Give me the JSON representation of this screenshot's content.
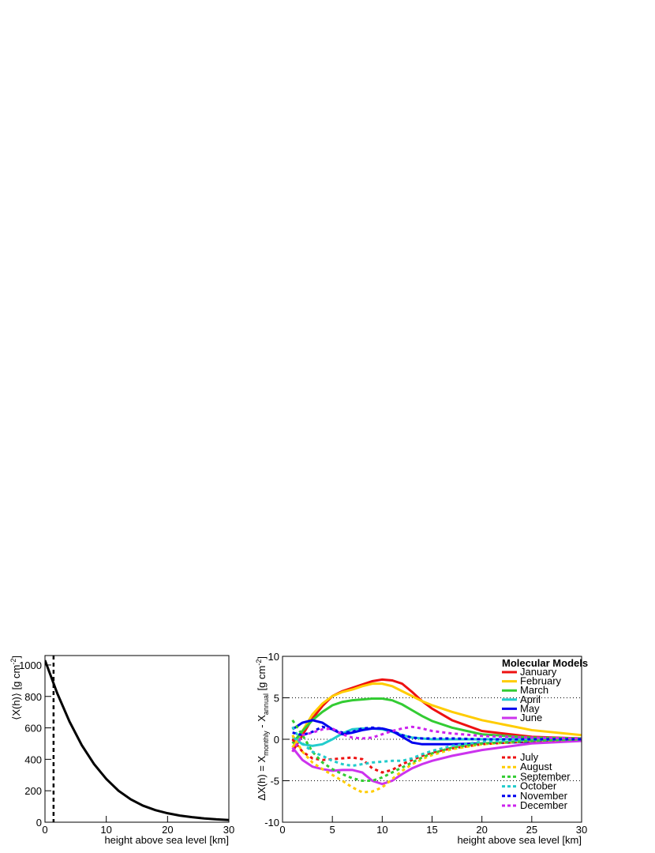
{
  "chart_data": [
    {
      "type": "line",
      "xlabel": "height above sea level [km]",
      "ylabel": [
        "⟨X(h)⟩  [g cm",
        "-2",
        "]"
      ],
      "xlim": [
        0,
        30
      ],
      "ylim": [
        0,
        1060
      ],
      "xticks": [
        0,
        10,
        20,
        30
      ],
      "yticks": [
        0,
        200,
        400,
        600,
        800,
        1000
      ],
      "vline": 1.4,
      "x": [
        0,
        2,
        4,
        6,
        8,
        10,
        12,
        14,
        16,
        18,
        20,
        22,
        24,
        26,
        28,
        30
      ],
      "series": [
        {
          "color": "#000000",
          "dashed": false,
          "values": [
            1030,
            820,
            640,
            490,
            370,
            275,
            200,
            145,
            105,
            77,
            57,
            42,
            32,
            24,
            18,
            14
          ]
        }
      ]
    },
    {
      "type": "line",
      "xlabel": "height above sea level [km]",
      "ylabel": [
        "ΔX(h) = X",
        "monthly",
        " - X",
        "annual",
        "  [g cm",
        "-2",
        "]"
      ],
      "legend_title": "Molecular Models",
      "xlim": [
        0,
        30
      ],
      "ylim": [
        -10,
        10
      ],
      "xticks": [
        0,
        5,
        10,
        15,
        20,
        25,
        30
      ],
      "yticks": [
        -10,
        -5,
        0,
        5,
        10
      ],
      "hlines": [
        5,
        0,
        -5
      ],
      "x": [
        1,
        2,
        3,
        4,
        5,
        6,
        7,
        8,
        9,
        10,
        11,
        12,
        13,
        14,
        15,
        17,
        20,
        25,
        30
      ],
      "series": [
        {
          "name": "January",
          "color": "#ee1111",
          "dashed": false,
          "values": [
            -1.5,
            0.5,
            2.5,
            4,
            5.2,
            5.8,
            6.2,
            6.6,
            7,
            7.2,
            7.1,
            6.7,
            5.7,
            4.6,
            3.7,
            2.3,
            1.0,
            0.3,
            0.1
          ]
        },
        {
          "name": "February",
          "color": "#ffcc00",
          "dashed": false,
          "values": [
            -1,
            1,
            3,
            4.3,
            5.2,
            5.7,
            6,
            6.4,
            6.7,
            6.7,
            6.4,
            5.8,
            5.2,
            4.6,
            4.1,
            3.3,
            2.3,
            1.1,
            0.5
          ]
        },
        {
          "name": "March",
          "color": "#33cc33",
          "dashed": false,
          "values": [
            -0.5,
            1,
            2.3,
            3.3,
            4.1,
            4.5,
            4.7,
            4.8,
            4.9,
            4.9,
            4.7,
            4.2,
            3.5,
            2.8,
            2.2,
            1.4,
            0.6,
            0.2,
            0.1
          ]
        },
        {
          "name": "April",
          "color": "#22cccc",
          "dashed": false,
          "values": [
            0.3,
            -0.6,
            -0.8,
            -0.6,
            0,
            0.7,
            1.2,
            1.3,
            1.3,
            1.2,
            0.9,
            0.5,
            0.2,
            0.1,
            0,
            0,
            0,
            0,
            0
          ]
        },
        {
          "name": "May",
          "color": "#0000ee",
          "dashed": false,
          "values": [
            1.2,
            2,
            2.3,
            2.0,
            1.2,
            0.6,
            0.8,
            1.1,
            1.3,
            1.3,
            1.0,
            0.3,
            -0.4,
            -0.6,
            -0.6,
            -0.6,
            -0.5,
            -0.3,
            -0.1
          ]
        },
        {
          "name": "June",
          "color": "#cc33ee",
          "dashed": false,
          "values": [
            -1,
            -2.5,
            -3.3,
            -3.6,
            -3.8,
            -3.7,
            -3.7,
            -4.0,
            -5.0,
            -5.4,
            -5.0,
            -4.2,
            -3.5,
            -3.0,
            -2.6,
            -2.0,
            -1.3,
            -0.5,
            -0.2
          ]
        },
        {
          "name": "July",
          "color": "#ee1111",
          "dashed": true,
          "values": [
            0,
            -1.5,
            -2.3,
            -2.5,
            -2.4,
            -2.3,
            -2.2,
            -2.4,
            -3.5,
            -4.0,
            -3.7,
            -3.0,
            -2.5,
            -2.0,
            -1.6,
            -1.1,
            -0.6,
            -0.2,
            0
          ]
        },
        {
          "name": "August",
          "color": "#ffcc00",
          "dashed": true,
          "values": [
            0.5,
            -1.5,
            -2.8,
            -3.6,
            -4.3,
            -5,
            -5.8,
            -6.4,
            -6.3,
            -5.8,
            -4.8,
            -3.8,
            -3.0,
            -2.4,
            -1.9,
            -1.2,
            -0.6,
            -0.2,
            0
          ]
        },
        {
          "name": "September",
          "color": "#33cc33",
          "dashed": true,
          "values": [
            2.3,
            0.5,
            -1.5,
            -2.8,
            -3.6,
            -4.2,
            -4.7,
            -5,
            -5,
            -4.6,
            -4.0,
            -3.4,
            -2.8,
            -2.2,
            -1.7,
            -1.0,
            -0.5,
            -0.2,
            0
          ]
        },
        {
          "name": "October",
          "color": "#22cccc",
          "dashed": true,
          "values": [
            1.5,
            -0.5,
            -1.5,
            -2.0,
            -2.6,
            -3.0,
            -3.2,
            -3.0,
            -2.8,
            -2.7,
            -2.6,
            -2.6,
            -2.3,
            -1.8,
            -1.4,
            -0.8,
            -0.3,
            -0.1,
            0
          ]
        },
        {
          "name": "November",
          "color": "#0000ee",
          "dashed": true,
          "values": [
            0.8,
            0.5,
            0.9,
            1.5,
            1.2,
            0.8,
            0.9,
            1.3,
            1.4,
            1.3,
            1.0,
            0.5,
            0.2,
            0.1,
            0.1,
            0.1,
            0,
            0,
            0
          ]
        },
        {
          "name": "December",
          "color": "#cc22ee",
          "dashed": true,
          "values": [
            -1.5,
            0.5,
            0.8,
            1.2,
            1.3,
            0.6,
            0.2,
            0.1,
            0.2,
            0.6,
            1.0,
            1.3,
            1.5,
            1.3,
            1.0,
            0.7,
            0.4,
            0.2,
            0.1
          ]
        }
      ]
    }
  ]
}
